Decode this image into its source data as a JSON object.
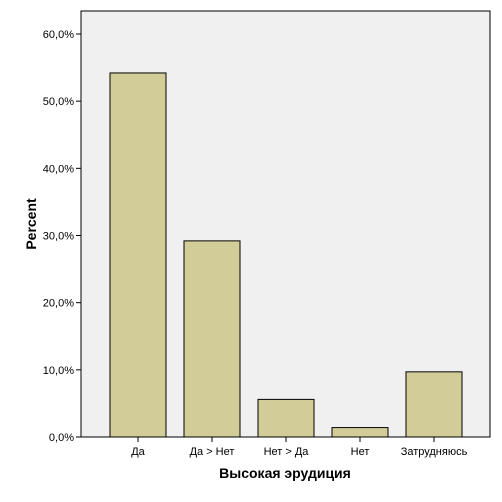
{
  "chart_data": {
    "type": "bar",
    "title": "",
    "xlabel": "Высокая эрудиция",
    "ylabel": "Percent",
    "categories": [
      "Да",
      "Да > Нет",
      "Нет > Да",
      "Нет",
      "Затрудняюсь"
    ],
    "values": [
      54.2,
      29.2,
      5.6,
      1.4,
      9.7
    ],
    "ylim": [
      0,
      60
    ],
    "yticks": [
      0,
      10,
      20,
      30,
      40,
      50,
      60
    ],
    "ytick_labels": [
      "0,0%",
      "10,0%",
      "20,0%",
      "30,0%",
      "40,0%",
      "50,0%",
      "60,0%"
    ],
    "grid": false,
    "legend": "none",
    "colors": {
      "bar_fill": "#D2CD98",
      "bar_stroke": "#000000",
      "plot_background": "#F0F0F0",
      "page_background": "#FFFFFF"
    }
  }
}
